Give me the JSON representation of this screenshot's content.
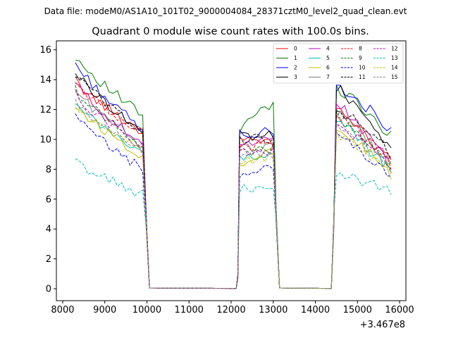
{
  "chart_data": {
    "type": "line",
    "suptitle": "Data file: modeM0/AS1A10_101T02_9000004084_28371cztM0_level2_quad_clean.evt",
    "title": "Quadrant 0 module wise count rates with 100.0s bins.",
    "xlabel": "",
    "ylabel": "",
    "x_offset_label": "+3.467e8",
    "xlim": [
      7850,
      16150
    ],
    "ylim": [
      -0.8,
      16.6
    ],
    "xticks": [
      8000,
      9000,
      10000,
      11000,
      12000,
      13000,
      14000,
      15000,
      16000
    ],
    "yticks": [
      0,
      2,
      4,
      6,
      8,
      10,
      12,
      14,
      16
    ],
    "grid": false,
    "legend_position": "top-right",
    "legend_columns": 4,
    "segments": [
      {
        "start": 8300,
        "end": 9900
      },
      {
        "start": 12200,
        "end": 13000
      },
      {
        "start": 14500,
        "end": 15800
      }
    ],
    "series": [
      {
        "name": "0",
        "color": "#ff0000",
        "dash": "solid",
        "seg1": [
          13.9,
          10.5
        ],
        "seg2": [
          9.9,
          9.7
        ],
        "seg3": [
          12.0,
          8.5
        ]
      },
      {
        "name": "1",
        "color": "#008000",
        "dash": "solid",
        "seg1": [
          15.6,
          11.6
        ],
        "seg2": [
          10.7,
          12.5
        ],
        "seg3": [
          13.5,
          10.3
        ]
      },
      {
        "name": "2",
        "color": "#0000ff",
        "dash": "solid",
        "seg1": [
          15.1,
          10.6
        ],
        "seg2": [
          10.3,
          10.6
        ],
        "seg3": [
          13.7,
          10.7
        ]
      },
      {
        "name": "3",
        "color": "#000000",
        "dash": "solid",
        "seg1": [
          14.5,
          10.5
        ],
        "seg2": [
          10.2,
          10.3
        ],
        "seg3": [
          13.5,
          9.3
        ]
      },
      {
        "name": "4",
        "color": "#bf00bf",
        "dash": "solid",
        "seg1": [
          13.8,
          9.6
        ],
        "seg2": [
          9.7,
          10.0
        ],
        "seg3": [
          12.5,
          8.3
        ]
      },
      {
        "name": "5",
        "color": "#00bfbf",
        "dash": "solid",
        "seg1": [
          12.3,
          9.1
        ],
        "seg2": [
          8.6,
          9.0
        ],
        "seg3": [
          11.2,
          7.9
        ]
      },
      {
        "name": "6",
        "color": "#bfbf00",
        "dash": "solid",
        "seg1": [
          12.3,
          8.9
        ],
        "seg2": [
          8.3,
          9.2
        ],
        "seg3": [
          11.0,
          7.6
        ]
      },
      {
        "name": "7",
        "color": "#808080",
        "dash": "solid",
        "seg1": [
          13.3,
          9.6
        ],
        "seg2": [
          9.3,
          9.6
        ],
        "seg3": [
          11.8,
          8.4
        ]
      },
      {
        "name": "8",
        "color": "#ff0000",
        "dash": "dashed",
        "seg1": [
          13.8,
          10.5
        ],
        "seg2": [
          9.6,
          9.4
        ],
        "seg3": [
          11.7,
          8.4
        ]
      },
      {
        "name": "9",
        "color": "#008000",
        "dash": "dashed",
        "seg1": [
          13.3,
          9.6
        ],
        "seg2": [
          9.1,
          9.3
        ],
        "seg3": [
          11.6,
          8.3
        ]
      },
      {
        "name": "10",
        "color": "#0000ff",
        "dash": "dashed",
        "seg1": [
          11.5,
          8.0
        ],
        "seg2": [
          7.4,
          8.2
        ],
        "seg3": [
          10.3,
          7.4
        ]
      },
      {
        "name": "11",
        "color": "#000000",
        "dash": "dashed",
        "seg1": [
          14.4,
          10.6
        ],
        "seg2": [
          10.1,
          10.0
        ],
        "seg3": [
          12.1,
          9.1
        ]
      },
      {
        "name": "12",
        "color": "#bf00bf",
        "dash": "dashed",
        "seg1": [
          13.0,
          9.5
        ],
        "seg2": [
          9.3,
          9.2
        ],
        "seg3": [
          11.1,
          8.6
        ]
      },
      {
        "name": "13",
        "color": "#00bfbf",
        "dash": "dashed",
        "seg1": [
          8.5,
          6.3
        ],
        "seg2": [
          6.7,
          6.6
        ],
        "seg3": [
          7.8,
          6.4
        ]
      },
      {
        "name": "14",
        "color": "#bfbf00",
        "dash": "dashed",
        "seg1": [
          12.2,
          9.1
        ],
        "seg2": [
          8.5,
          8.9
        ],
        "seg3": [
          10.4,
          7.9
        ]
      },
      {
        "name": "15",
        "color": "#808080",
        "dash": "dashed",
        "seg1": [
          12.4,
          9.3
        ],
        "seg2": [
          8.8,
          9.0
        ],
        "seg3": [
          10.7,
          8.1
        ]
      }
    ]
  }
}
